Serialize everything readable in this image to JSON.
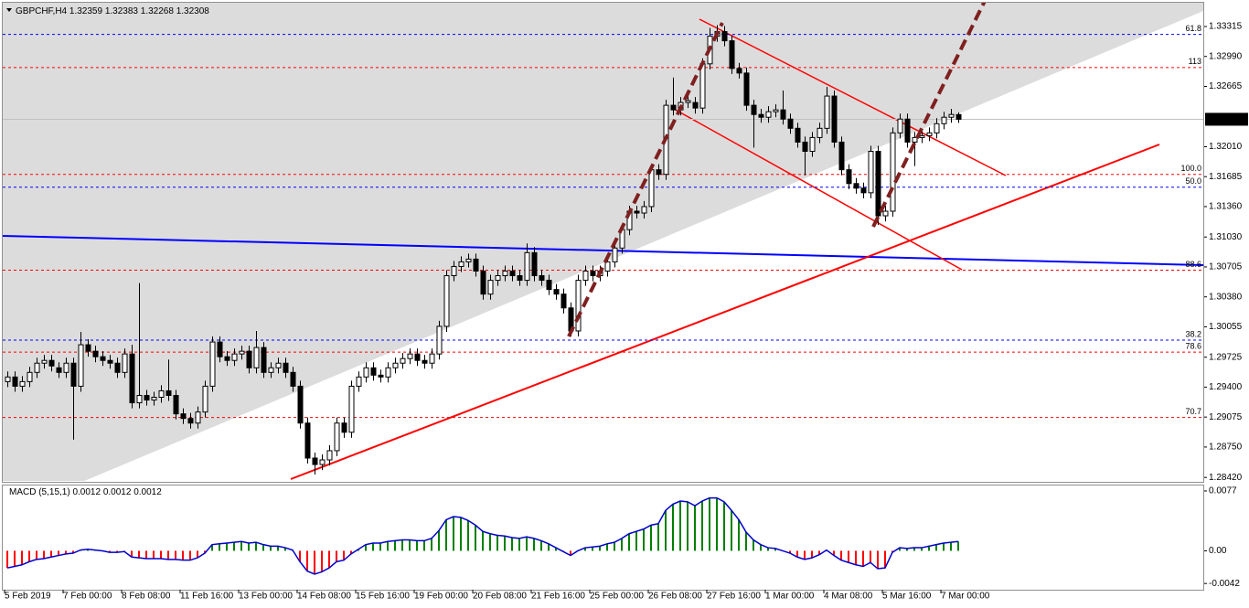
{
  "chart_data": [
    {
      "type": "candlestick",
      "symbol": "GBPCHF,H4",
      "categories": [
        "5 Feb 2019",
        null,
        null,
        null,
        null,
        null,
        null,
        null,
        "7 Feb 00:00",
        null,
        null,
        null,
        null,
        null,
        null,
        null,
        "8 Feb 08:00",
        null,
        null,
        null,
        null,
        null,
        null,
        null,
        "11 Feb 16:00",
        null,
        null,
        null,
        null,
        null,
        null,
        null,
        "13 Feb 00:00",
        null,
        null,
        null,
        null,
        null,
        null,
        null,
        "14 Feb 08:00",
        null,
        null,
        null,
        null,
        null,
        null,
        null,
        "15 Feb 16:00",
        null,
        null,
        null,
        null,
        null,
        null,
        null,
        "19 Feb 00:00",
        null,
        null,
        null,
        null,
        null,
        null,
        null,
        "20 Feb 08:00",
        null,
        null,
        null,
        null,
        null,
        null,
        null,
        "21 Feb 16:00",
        null,
        null,
        null,
        null,
        null,
        null,
        null,
        "25 Feb 00:00",
        null,
        null,
        null,
        null,
        null,
        null,
        null,
        "26 Feb 08:00",
        null,
        null,
        null,
        null,
        null,
        null,
        null,
        "27 Feb 16:00",
        null,
        null,
        null,
        null,
        null,
        null,
        null,
        "1 Mar 00:00",
        null,
        null,
        null,
        null,
        null,
        null,
        null,
        "4 Mar 08:00",
        null,
        null,
        null,
        null,
        null,
        null,
        null,
        "5 Mar 16:00",
        null,
        null,
        null,
        null,
        null,
        null,
        null,
        "7 Mar 00:00",
        null,
        null
      ],
      "ohlc": [
        [
          1.2946,
          1.2957,
          1.294,
          1.2951
        ],
        [
          1.2951,
          1.2957,
          1.2935,
          1.2941
        ],
        [
          1.2941,
          1.2952,
          1.2935,
          1.2946
        ],
        [
          1.2946,
          1.2962,
          1.294,
          1.2956
        ],
        [
          1.2956,
          1.2972,
          1.295,
          1.2966
        ],
        [
          1.2966,
          1.2975,
          1.296,
          1.2969
        ],
        [
          1.2969,
          1.2975,
          1.2957,
          1.2963
        ],
        [
          1.2961,
          1.2967,
          1.295,
          1.2956
        ],
        [
          1.2956,
          1.2972,
          1.295,
          1.2966
        ],
        [
          1.2966,
          1.2972,
          1.2883,
          1.2941
        ],
        [
          1.2941,
          1.3,
          1.2935,
          1.2986
        ],
        [
          1.2986,
          1.2992,
          1.2973,
          1.2979
        ],
        [
          1.2979,
          1.2985,
          1.2967,
          1.2973
        ],
        [
          1.2973,
          1.2979,
          1.2963,
          1.2969
        ],
        [
          1.2969,
          1.2975,
          1.296,
          1.2966
        ],
        [
          1.2966,
          1.2972,
          1.295,
          1.2956
        ],
        [
          1.2956,
          1.2982,
          1.295,
          1.2976
        ],
        [
          1.2976,
          1.2986,
          1.2917,
          1.2923
        ],
        [
          1.2923,
          1.3053,
          1.2917,
          1.2931
        ],
        [
          1.2931,
          1.2937,
          1.292,
          1.2926
        ],
        [
          1.2926,
          1.2935,
          1.292,
          1.2929
        ],
        [
          1.2929,
          1.2942,
          1.2923,
          1.2936
        ],
        [
          1.2936,
          1.297,
          1.2925,
          1.2931
        ],
        [
          1.2931,
          1.2937,
          1.2905,
          1.2911
        ],
        [
          1.2911,
          1.2917,
          1.29,
          1.2906
        ],
        [
          1.2906,
          1.2912,
          1.2895,
          1.2901
        ],
        [
          1.2901,
          1.2919,
          1.2895,
          1.2913
        ],
        [
          1.2913,
          1.2947,
          1.2907,
          1.2941
        ],
        [
          1.2941,
          1.2995,
          1.2935,
          1.2989
        ],
        [
          1.2989,
          1.2995,
          1.2967,
          1.2973
        ],
        [
          1.2973,
          1.2979,
          1.2963,
          1.2969
        ],
        [
          1.2969,
          1.2982,
          1.2963,
          1.2976
        ],
        [
          1.2976,
          1.2985,
          1.297,
          1.2979
        ],
        [
          1.2979,
          1.2985,
          1.2955,
          1.2961
        ],
        [
          1.2961,
          1.3001,
          1.2955,
          1.2983
        ],
        [
          1.2983,
          1.2989,
          1.295,
          1.2956
        ],
        [
          1.2956,
          1.2967,
          1.295,
          1.2961
        ],
        [
          1.2961,
          1.2972,
          1.2955,
          1.2966
        ],
        [
          1.2966,
          1.2972,
          1.295,
          1.2956
        ],
        [
          1.2956,
          1.2962,
          1.2935,
          1.2941
        ],
        [
          1.2941,
          1.2947,
          1.2895,
          1.2901
        ],
        [
          1.2901,
          1.2907,
          1.2857,
          1.2863
        ],
        [
          1.2863,
          1.2869,
          1.2845,
          1.2856
        ],
        [
          1.2856,
          1.2867,
          1.285,
          1.2861
        ],
        [
          1.2861,
          1.2877,
          1.2855,
          1.2871
        ],
        [
          1.2871,
          1.2907,
          1.2865,
          1.2901
        ],
        [
          1.2901,
          1.2907,
          1.2885,
          1.2891
        ],
        [
          1.2891,
          1.2947,
          1.2885,
          1.2941
        ],
        [
          1.2941,
          1.2957,
          1.2935,
          1.2951
        ],
        [
          1.2951,
          1.2967,
          1.2945,
          1.2961
        ],
        [
          1.2961,
          1.2967,
          1.2947,
          1.2953
        ],
        [
          1.2953,
          1.2959,
          1.2945,
          1.2951
        ],
        [
          1.2951,
          1.2967,
          1.2945,
          1.2961
        ],
        [
          1.2961,
          1.2972,
          1.2955,
          1.2966
        ],
        [
          1.2966,
          1.2977,
          1.296,
          1.2971
        ],
        [
          1.2971,
          1.2982,
          1.2965,
          1.2976
        ],
        [
          1.2976,
          1.2982,
          1.2963,
          1.2969
        ],
        [
          1.2969,
          1.2975,
          1.296,
          1.2966
        ],
        [
          1.2966,
          1.2982,
          1.296,
          1.2976
        ],
        [
          1.2976,
          1.3012,
          1.297,
          1.3006
        ],
        [
          1.3006,
          1.3067,
          1.3,
          1.3061
        ],
        [
          1.3061,
          1.3077,
          1.3055,
          1.3071
        ],
        [
          1.3071,
          1.3082,
          1.3065,
          1.3076
        ],
        [
          1.3076,
          1.3085,
          1.307,
          1.3079
        ],
        [
          1.3079,
          1.3085,
          1.306,
          1.3066
        ],
        [
          1.3066,
          1.3072,
          1.3035,
          1.3041
        ],
        [
          1.3041,
          1.3062,
          1.3035,
          1.3056
        ],
        [
          1.3056,
          1.3067,
          1.305,
          1.3061
        ],
        [
          1.3061,
          1.3072,
          1.3055,
          1.3066
        ],
        [
          1.3066,
          1.3072,
          1.3055,
          1.3061
        ],
        [
          1.3061,
          1.3067,
          1.305,
          1.3056
        ],
        [
          1.3056,
          1.3096,
          1.305,
          1.3086
        ],
        [
          1.3086,
          1.3092,
          1.3055,
          1.3061
        ],
        [
          1.3061,
          1.3067,
          1.305,
          1.3056
        ],
        [
          1.3056,
          1.3062,
          1.304,
          1.3046
        ],
        [
          1.3046,
          1.3052,
          1.3035,
          1.3041
        ],
        [
          1.3041,
          1.3047,
          1.302,
          1.3026
        ],
        [
          1.3026,
          1.3032,
          1.2995,
          1.3001
        ],
        [
          1.3001,
          1.3062,
          1.2995,
          1.3056
        ],
        [
          1.3056,
          1.3072,
          1.305,
          1.3066
        ],
        [
          1.3066,
          1.3072,
          1.3055,
          1.3061
        ],
        [
          1.3061,
          1.3072,
          1.3055,
          1.3066
        ],
        [
          1.3066,
          1.3082,
          1.306,
          1.3076
        ],
        [
          1.3076,
          1.3097,
          1.307,
          1.3091
        ],
        [
          1.3091,
          1.3117,
          1.3085,
          1.3111
        ],
        [
          1.3111,
          1.3137,
          1.3105,
          1.3131
        ],
        [
          1.3131,
          1.3137,
          1.3123,
          1.3129
        ],
        [
          1.3129,
          1.3142,
          1.3123,
          1.3136
        ],
        [
          1.3136,
          1.3182,
          1.313,
          1.3176
        ],
        [
          1.3176,
          1.3182,
          1.3165,
          1.3171
        ],
        [
          1.3171,
          1.3252,
          1.3165,
          1.3246
        ],
        [
          1.3246,
          1.3276,
          1.3235,
          1.3241
        ],
        [
          1.3241,
          1.3255,
          1.3235,
          1.3249
        ],
        [
          1.3249,
          1.3257,
          1.3243,
          1.3251
        ],
        [
          1.3249,
          1.3255,
          1.3237,
          1.3243
        ],
        [
          1.3243,
          1.3297,
          1.3237,
          1.3291
        ],
        [
          1.3291,
          1.333,
          1.3285,
          1.3321
        ],
        [
          1.3321,
          1.3333,
          1.3315,
          1.3326
        ],
        [
          1.3326,
          1.3332,
          1.331,
          1.3316
        ],
        [
          1.3316,
          1.3322,
          1.328,
          1.3286
        ],
        [
          1.3286,
          1.3292,
          1.3275,
          1.3281
        ],
        [
          1.3281,
          1.3287,
          1.324,
          1.3246
        ],
        [
          1.3246,
          1.3252,
          1.32,
          1.3236
        ],
        [
          1.3236,
          1.3242,
          1.3227,
          1.3233
        ],
        [
          1.3233,
          1.3245,
          1.3227,
          1.3239
        ],
        [
          1.3239,
          1.3247,
          1.3233,
          1.3241
        ],
        [
          1.3241,
          1.3262,
          1.3225,
          1.3231
        ],
        [
          1.3231,
          1.3237,
          1.3215,
          1.3221
        ],
        [
          1.3221,
          1.3227,
          1.32,
          1.3206
        ],
        [
          1.3206,
          1.3212,
          1.317,
          1.3196
        ],
        [
          1.3196,
          1.3217,
          1.319,
          1.3211
        ],
        [
          1.3211,
          1.3227,
          1.3205,
          1.3221
        ],
        [
          1.3221,
          1.3266,
          1.3215,
          1.3256
        ],
        [
          1.3256,
          1.3262,
          1.32,
          1.3206
        ],
        [
          1.3206,
          1.3212,
          1.317,
          1.3176
        ],
        [
          1.3176,
          1.3182,
          1.3155,
          1.3161
        ],
        [
          1.3161,
          1.3167,
          1.315,
          1.3156
        ],
        [
          1.3156,
          1.3162,
          1.3145,
          1.3151
        ],
        [
          1.3151,
          1.3202,
          1.3145,
          1.3196
        ],
        [
          1.3196,
          1.3202,
          1.3116,
          1.3126
        ],
        [
          1.3126,
          1.3137,
          1.312,
          1.3131
        ],
        [
          1.3131,
          1.3222,
          1.3125,
          1.3216
        ],
        [
          1.3216,
          1.3237,
          1.321,
          1.3231
        ],
        [
          1.3231,
          1.3237,
          1.32,
          1.3206
        ],
        [
          1.3206,
          1.3217,
          1.318,
          1.3211
        ],
        [
          1.3211,
          1.3219,
          1.3205,
          1.3213
        ],
        [
          1.3213,
          1.3222,
          1.3207,
          1.3216
        ],
        [
          1.3216,
          1.3232,
          1.321,
          1.3226
        ],
        [
          1.3226,
          1.3239,
          1.322,
          1.3233
        ],
        [
          1.3233,
          1.3242,
          1.3227,
          1.3236
        ],
        [
          1.32359,
          1.32383,
          1.32268,
          1.32308
        ]
      ],
      "up_color": "#ffffff",
      "down_color": "#000000",
      "ylim": [
        1.28372,
        1.33583
      ],
      "yticks": [
        1.33315,
        {
          "value": 1.3299,
          "label": "1.32990"
        },
        1.32665,
        {
          "value": 1.3201,
          "label": "1.32010"
        },
        1.31685,
        {
          "value": 1.3136,
          "label": "1.31360"
        },
        {
          "value": 1.3103,
          "label": "1.31030"
        },
        1.30705,
        {
          "value": 1.3038,
          "label": "1.30380"
        },
        1.30055,
        1.29725,
        {
          "value": 1.294,
          "label": "1.29400"
        },
        1.29075,
        {
          "value": 1.2875,
          "label": "1.28750"
        },
        {
          "value": 1.2842,
          "label": "1.28420"
        }
      ],
      "levels": [
        {
          "label": "61.8",
          "value": 1.3323,
          "color": "#0000ff"
        },
        {
          "label": "113",
          "value": 1.3287,
          "color": "#ff0000"
        },
        {
          "label": "100.0",
          "value": 1.3171,
          "color": "#ff0000"
        },
        {
          "label": "50.0",
          "value": 1.3157,
          "color": "#0000ff"
        },
        {
          "label": "88.6",
          "value": 1.3067,
          "color": "#ff0000"
        },
        {
          "label": "38.2",
          "value": 1.2991,
          "color": "#0000ff"
        },
        {
          "label": "78.6",
          "value": 1.2978,
          "color": "#ff0000"
        },
        {
          "label": "70.7",
          "value": 1.2907,
          "color": "#ff0000"
        }
      ]
    },
    {
      "type": "histogram",
      "title": "MACD (5,15,1)",
      "values": [
        -0.0022,
        -0.002,
        -0.0018,
        -0.0014,
        -0.0011,
        -0.001,
        -0.0008,
        -0.0006,
        -0.0004,
        -0.0003,
        0.0001,
        0.0002,
        0.0001,
        0,
        -0.0002,
        -0.0002,
        -0.0001,
        -0.0008,
        -0.0009,
        -0.001,
        -0.001,
        -0.001,
        -0.0011,
        -0.0011,
        -0.0012,
        -0.0012,
        -0.0009,
        -0.0003,
        0.0008,
        0.0009,
        0.001,
        0.0011,
        0.0012,
        0.001,
        0.0011,
        0.0008,
        0.0006,
        0.0006,
        0.0004,
        0.0001,
        -0.0014,
        -0.0026,
        -0.003,
        -0.0027,
        -0.0022,
        -0.0014,
        -0.0012,
        -0.0004,
        0.0002,
        0.0008,
        0.001,
        0.001,
        0.0012,
        0.0013,
        0.0014,
        0.0014,
        0.0013,
        0.0013,
        0.0016,
        0.0026,
        0.004,
        0.0044,
        0.0043,
        0.0039,
        0.0033,
        0.0025,
        0.0022,
        0.002,
        0.0019,
        0.0017,
        0.0016,
        0.0018,
        0.0016,
        0.0013,
        0.0009,
        0.0004,
        -0.0001,
        -0.0006,
        0,
        0.0004,
        0.0005,
        0.0006,
        0.0009,
        0.0011,
        0.0016,
        0.0022,
        0.0025,
        0.0028,
        0.0033,
        0.0035,
        0.0052,
        0.006,
        0.0064,
        0.0063,
        0.0058,
        0.0064,
        0.0068,
        0.0068,
        0.0063,
        0.0052,
        0.004,
        0.0024,
        0.0014,
        0.0008,
        0.0004,
        0.0003,
        0,
        -0.0003,
        -0.0008,
        -0.0011,
        -0.0009,
        -0.0005,
        0.0001,
        -0.0006,
        -0.0012,
        -0.0015,
        -0.0018,
        -0.002,
        -0.0015,
        -0.0023,
        -0.0022,
        -0.0002,
        0.0004,
        0.0003,
        0.0004,
        0.0004,
        0.0006,
        0.0008,
        0.001,
        0.0011,
        0.0012
      ],
      "positive_color": "#008000",
      "negative_color": "#ff0000",
      "line_color": "#0000cd",
      "ylim": [
        -0.005,
        0.0084
      ],
      "yticks": [
        0.0077,
        {
          "value": 0,
          "label": "0.00"
        },
        -0.0042
      ]
    }
  ]
}
